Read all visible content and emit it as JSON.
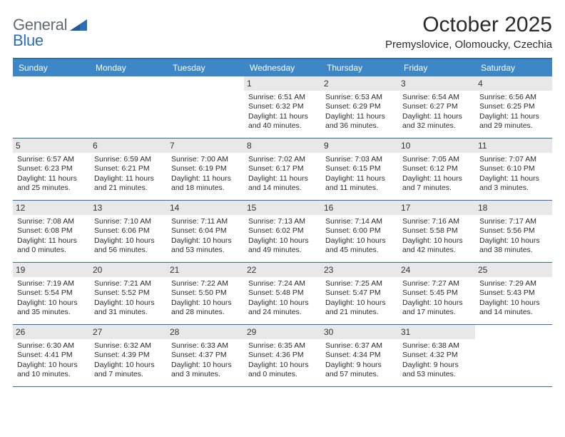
{
  "brand": {
    "word1": "General",
    "word2": "Blue",
    "color_gray": "#5f6b73",
    "color_blue": "#2a6fb5"
  },
  "title": {
    "month": "October 2025",
    "location": "Premyslovice, Olomoucky, Czechia"
  },
  "colors": {
    "header_bg": "#3d87c7",
    "header_text": "#ffffff",
    "rule": "#2a6fb5",
    "daynum_bg": "#e8e8e8",
    "text": "#2b2b2b",
    "page_bg": "#ffffff"
  },
  "typography": {
    "month_fontsize": 30,
    "location_fontsize": 15,
    "dow_fontsize": 12,
    "body_fontsize": 10.5
  },
  "layout": {
    "columns": 7,
    "cell_min_height": 86
  },
  "days_of_week": [
    "Sunday",
    "Monday",
    "Tuesday",
    "Wednesday",
    "Thursday",
    "Friday",
    "Saturday"
  ],
  "weeks": [
    [
      null,
      null,
      null,
      {
        "n": "1",
        "sr": "Sunrise: 6:51 AM",
        "ss": "Sunset: 6:32 PM",
        "d1": "Daylight: 11 hours",
        "d2": "and 40 minutes."
      },
      {
        "n": "2",
        "sr": "Sunrise: 6:53 AM",
        "ss": "Sunset: 6:29 PM",
        "d1": "Daylight: 11 hours",
        "d2": "and 36 minutes."
      },
      {
        "n": "3",
        "sr": "Sunrise: 6:54 AM",
        "ss": "Sunset: 6:27 PM",
        "d1": "Daylight: 11 hours",
        "d2": "and 32 minutes."
      },
      {
        "n": "4",
        "sr": "Sunrise: 6:56 AM",
        "ss": "Sunset: 6:25 PM",
        "d1": "Daylight: 11 hours",
        "d2": "and 29 minutes."
      }
    ],
    [
      {
        "n": "5",
        "sr": "Sunrise: 6:57 AM",
        "ss": "Sunset: 6:23 PM",
        "d1": "Daylight: 11 hours",
        "d2": "and 25 minutes."
      },
      {
        "n": "6",
        "sr": "Sunrise: 6:59 AM",
        "ss": "Sunset: 6:21 PM",
        "d1": "Daylight: 11 hours",
        "d2": "and 21 minutes."
      },
      {
        "n": "7",
        "sr": "Sunrise: 7:00 AM",
        "ss": "Sunset: 6:19 PM",
        "d1": "Daylight: 11 hours",
        "d2": "and 18 minutes."
      },
      {
        "n": "8",
        "sr": "Sunrise: 7:02 AM",
        "ss": "Sunset: 6:17 PM",
        "d1": "Daylight: 11 hours",
        "d2": "and 14 minutes."
      },
      {
        "n": "9",
        "sr": "Sunrise: 7:03 AM",
        "ss": "Sunset: 6:15 PM",
        "d1": "Daylight: 11 hours",
        "d2": "and 11 minutes."
      },
      {
        "n": "10",
        "sr": "Sunrise: 7:05 AM",
        "ss": "Sunset: 6:12 PM",
        "d1": "Daylight: 11 hours",
        "d2": "and 7 minutes."
      },
      {
        "n": "11",
        "sr": "Sunrise: 7:07 AM",
        "ss": "Sunset: 6:10 PM",
        "d1": "Daylight: 11 hours",
        "d2": "and 3 minutes."
      }
    ],
    [
      {
        "n": "12",
        "sr": "Sunrise: 7:08 AM",
        "ss": "Sunset: 6:08 PM",
        "d1": "Daylight: 11 hours",
        "d2": "and 0 minutes."
      },
      {
        "n": "13",
        "sr": "Sunrise: 7:10 AM",
        "ss": "Sunset: 6:06 PM",
        "d1": "Daylight: 10 hours",
        "d2": "and 56 minutes."
      },
      {
        "n": "14",
        "sr": "Sunrise: 7:11 AM",
        "ss": "Sunset: 6:04 PM",
        "d1": "Daylight: 10 hours",
        "d2": "and 53 minutes."
      },
      {
        "n": "15",
        "sr": "Sunrise: 7:13 AM",
        "ss": "Sunset: 6:02 PM",
        "d1": "Daylight: 10 hours",
        "d2": "and 49 minutes."
      },
      {
        "n": "16",
        "sr": "Sunrise: 7:14 AM",
        "ss": "Sunset: 6:00 PM",
        "d1": "Daylight: 10 hours",
        "d2": "and 45 minutes."
      },
      {
        "n": "17",
        "sr": "Sunrise: 7:16 AM",
        "ss": "Sunset: 5:58 PM",
        "d1": "Daylight: 10 hours",
        "d2": "and 42 minutes."
      },
      {
        "n": "18",
        "sr": "Sunrise: 7:17 AM",
        "ss": "Sunset: 5:56 PM",
        "d1": "Daylight: 10 hours",
        "d2": "and 38 minutes."
      }
    ],
    [
      {
        "n": "19",
        "sr": "Sunrise: 7:19 AM",
        "ss": "Sunset: 5:54 PM",
        "d1": "Daylight: 10 hours",
        "d2": "and 35 minutes."
      },
      {
        "n": "20",
        "sr": "Sunrise: 7:21 AM",
        "ss": "Sunset: 5:52 PM",
        "d1": "Daylight: 10 hours",
        "d2": "and 31 minutes."
      },
      {
        "n": "21",
        "sr": "Sunrise: 7:22 AM",
        "ss": "Sunset: 5:50 PM",
        "d1": "Daylight: 10 hours",
        "d2": "and 28 minutes."
      },
      {
        "n": "22",
        "sr": "Sunrise: 7:24 AM",
        "ss": "Sunset: 5:48 PM",
        "d1": "Daylight: 10 hours",
        "d2": "and 24 minutes."
      },
      {
        "n": "23",
        "sr": "Sunrise: 7:25 AM",
        "ss": "Sunset: 5:47 PM",
        "d1": "Daylight: 10 hours",
        "d2": "and 21 minutes."
      },
      {
        "n": "24",
        "sr": "Sunrise: 7:27 AM",
        "ss": "Sunset: 5:45 PM",
        "d1": "Daylight: 10 hours",
        "d2": "and 17 minutes."
      },
      {
        "n": "25",
        "sr": "Sunrise: 7:29 AM",
        "ss": "Sunset: 5:43 PM",
        "d1": "Daylight: 10 hours",
        "d2": "and 14 minutes."
      }
    ],
    [
      {
        "n": "26",
        "sr": "Sunrise: 6:30 AM",
        "ss": "Sunset: 4:41 PM",
        "d1": "Daylight: 10 hours",
        "d2": "and 10 minutes."
      },
      {
        "n": "27",
        "sr": "Sunrise: 6:32 AM",
        "ss": "Sunset: 4:39 PM",
        "d1": "Daylight: 10 hours",
        "d2": "and 7 minutes."
      },
      {
        "n": "28",
        "sr": "Sunrise: 6:33 AM",
        "ss": "Sunset: 4:37 PM",
        "d1": "Daylight: 10 hours",
        "d2": "and 3 minutes."
      },
      {
        "n": "29",
        "sr": "Sunrise: 6:35 AM",
        "ss": "Sunset: 4:36 PM",
        "d1": "Daylight: 10 hours",
        "d2": "and 0 minutes."
      },
      {
        "n": "30",
        "sr": "Sunrise: 6:37 AM",
        "ss": "Sunset: 4:34 PM",
        "d1": "Daylight: 9 hours",
        "d2": "and 57 minutes."
      },
      {
        "n": "31",
        "sr": "Sunrise: 6:38 AM",
        "ss": "Sunset: 4:32 PM",
        "d1": "Daylight: 9 hours",
        "d2": "and 53 minutes."
      },
      null
    ]
  ]
}
